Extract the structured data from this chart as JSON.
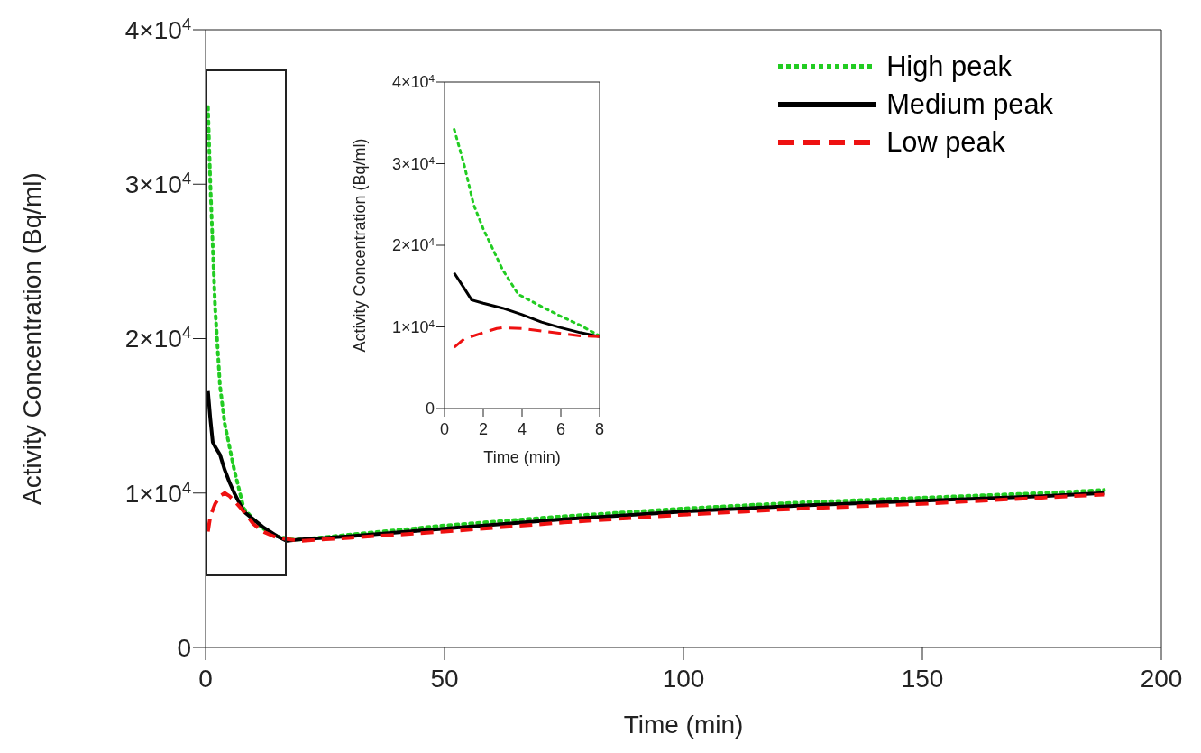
{
  "chart_data": [
    {
      "type": "line",
      "xlabel": "Time (min)",
      "ylabel": "Activity Concentration (Bq/ml)",
      "xlim": [
        0,
        200
      ],
      "xticks": [
        0,
        50,
        100,
        150,
        200
      ],
      "ylim": [
        0,
        40000
      ],
      "yticks": [
        0,
        {
          "value": 10000,
          "label": "1×10$^{4}$"
        },
        {
          "value": 20000,
          "label": "2×10$^{4}$"
        },
        {
          "value": 30000,
          "label": "3×10$^{4}$"
        },
        {
          "value": 40000,
          "label": "4×10$^{4}$"
        }
      ],
      "legend": "top right",
      "marker": "none",
      "grid": false,
      "series": [
        {
          "name": "High peak",
          "color": "#22cc22",
          "line_style": "dotted",
          "x": [
            0.5,
            1,
            2,
            3,
            4,
            5,
            6,
            8,
            10,
            12,
            15,
            18,
            20,
            30,
            50,
            75,
            100,
            125,
            150,
            175,
            188
          ],
          "values": [
            35000,
            30000,
            22000,
            17000,
            14500,
            13000,
            11500,
            9000,
            8300,
            7700,
            7200,
            7000,
            7000,
            7300,
            7900,
            8500,
            9000,
            9400,
            9700,
            10000,
            10200
          ]
        },
        {
          "name": "Medium peak",
          "color": "#000000",
          "line_style": "solid",
          "x": [
            0.5,
            1,
            1.5,
            2,
            3,
            4,
            5,
            6,
            8,
            10,
            12,
            15,
            17,
            20,
            30,
            50,
            75,
            100,
            125,
            150,
            175,
            188
          ],
          "values": [
            16600,
            14800,
            13300,
            13000,
            12500,
            11500,
            10700,
            10000,
            8800,
            8300,
            7800,
            7200,
            6900,
            7000,
            7200,
            7700,
            8300,
            8800,
            9200,
            9500,
            9800,
            10000
          ]
        },
        {
          "name": "Low peak",
          "color": "#ee1111",
          "line_style": "dashed",
          "x": [
            0.5,
            1,
            2,
            3,
            4,
            5,
            6,
            8,
            10,
            12,
            15,
            20,
            30,
            50,
            75,
            100,
            125,
            150,
            175,
            188
          ],
          "values": [
            7500,
            8500,
            9300,
            9800,
            10000,
            9800,
            9500,
            8800,
            8000,
            7500,
            7100,
            6900,
            7100,
            7500,
            8100,
            8600,
            9000,
            9300,
            9700,
            9900
          ]
        }
      ]
    },
    {
      "type": "line",
      "xlabel": "Time (min)",
      "ylabel": "Activity Concentration (Bq/ml)",
      "xlim": [
        0,
        8
      ],
      "xticks": [
        0,
        2,
        4,
        6,
        8
      ],
      "ylim": [
        0,
        40000
      ],
      "yticks": [
        0,
        {
          "value": 10000,
          "label": "1×10$^{4}$"
        },
        {
          "value": 20000,
          "label": "2×10$^{4}$"
        },
        {
          "value": 30000,
          "label": "3×10$^{4}$"
        },
        {
          "value": 40000,
          "label": "4×10$^{4}$"
        }
      ],
      "marker": "none",
      "grid": false,
      "series": [
        {
          "color": "#22cc22",
          "line_style": "dotted",
          "x": [
            0.5,
            1,
            1.5,
            2,
            3,
            3.8,
            5,
            6,
            7,
            8
          ],
          "values": [
            34200,
            30000,
            25000,
            22000,
            17000,
            14000,
            12500,
            11300,
            10200,
            8900
          ]
        },
        {
          "color": "#000000",
          "line_style": "solid",
          "x": [
            0.5,
            1,
            1.4,
            2,
            3,
            4,
            5,
            6,
            7,
            8
          ],
          "values": [
            16600,
            14800,
            13300,
            12900,
            12300,
            11500,
            10600,
            9900,
            9300,
            8800
          ]
        },
        {
          "color": "#ee1111",
          "line_style": "dashed",
          "x": [
            0.5,
            1,
            2,
            2.7,
            3,
            4,
            5,
            6,
            7,
            8
          ],
          "values": [
            7500,
            8500,
            9300,
            9800,
            9900,
            9800,
            9500,
            9200,
            8900,
            8800
          ]
        }
      ]
    }
  ]
}
